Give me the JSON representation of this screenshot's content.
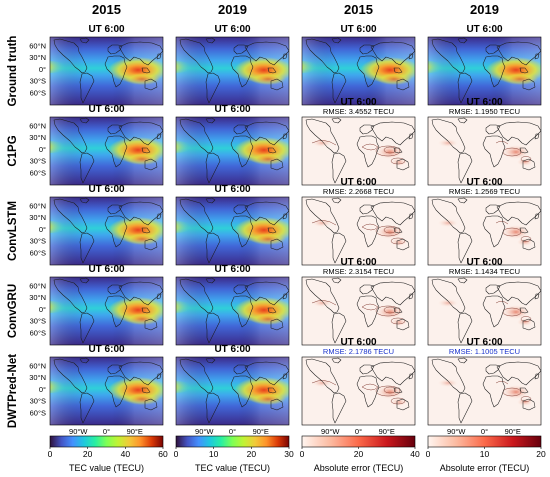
{
  "columns": [
    {
      "year": "2015",
      "kind": "tec",
      "scale": "tec60"
    },
    {
      "year": "2019",
      "kind": "tec",
      "scale": "tec30"
    },
    {
      "year": "2015",
      "kind": "error",
      "scale": "err40"
    },
    {
      "year": "2019",
      "kind": "error",
      "scale": "err20"
    }
  ],
  "rows": [
    {
      "label": "Ground truth",
      "cells": [
        {
          "title": "UT 6:00"
        },
        {
          "title": "UT 6:00"
        },
        {
          "title": "UT 6:00"
        },
        {
          "title": "UT 6:00"
        }
      ]
    },
    {
      "label": "C1PG",
      "cells": [
        {
          "title": "UT 6:00"
        },
        {
          "title": "UT 6:00"
        },
        {
          "title": "UT 6:00",
          "rmse": "RMSE: 3.4552 TECU"
        },
        {
          "title": "UT 6:00",
          "rmse": "RMSE: 1.1950 TECU"
        }
      ]
    },
    {
      "label": "ConvLSTM",
      "cells": [
        {
          "title": "UT 6:00"
        },
        {
          "title": "UT 6:00"
        },
        {
          "title": "UT 6:00",
          "rmse": "RMSE: 2.2668 TECU"
        },
        {
          "title": "UT 6:00",
          "rmse": "RMSE: 1.2569 TECU"
        }
      ]
    },
    {
      "label": "ConvGRU",
      "cells": [
        {
          "title": "UT 6:00"
        },
        {
          "title": "UT 6:00"
        },
        {
          "title": "UT 6:00",
          "rmse": "RMSE: 2.3154 TECU"
        },
        {
          "title": "UT 6:00",
          "rmse": "RMSE: 1.1434 TECU"
        }
      ]
    },
    {
      "label": "DWTPred-Net",
      "cells": [
        {
          "title": "UT 6:00"
        },
        {
          "title": "UT 6:00"
        },
        {
          "title": "UT 6:00",
          "rmse": "RMSE: 2.1786 TECU",
          "highlight": true
        },
        {
          "title": "UT 6:00",
          "rmse": "RMSE: 1.1005 TECU",
          "highlight": true
        }
      ]
    }
  ],
  "lat_ticks": [
    "60°N",
    "30°N",
    "0°",
    "30°S",
    "60°S"
  ],
  "lon_ticks": [
    "90°W",
    "0°",
    "90°E"
  ],
  "colorbars": [
    {
      "ticks": [
        "0",
        "20",
        "40",
        "60"
      ],
      "label": "TEC value (TECU)",
      "scale": "turbo"
    },
    {
      "ticks": [
        "0",
        "10",
        "20",
        "30"
      ],
      "label": "TEC value (TECU)",
      "scale": "turbo"
    },
    {
      "ticks": [
        "0",
        "20",
        "40"
      ],
      "label": "Absolute error (TECU)",
      "scale": "reds"
    },
    {
      "ticks": [
        "0",
        "10",
        "20"
      ],
      "label": "Absolute error (TECU)",
      "scale": "reds"
    }
  ],
  "colors": {
    "highlight_text": "#1a33cc",
    "text": "#000000"
  }
}
